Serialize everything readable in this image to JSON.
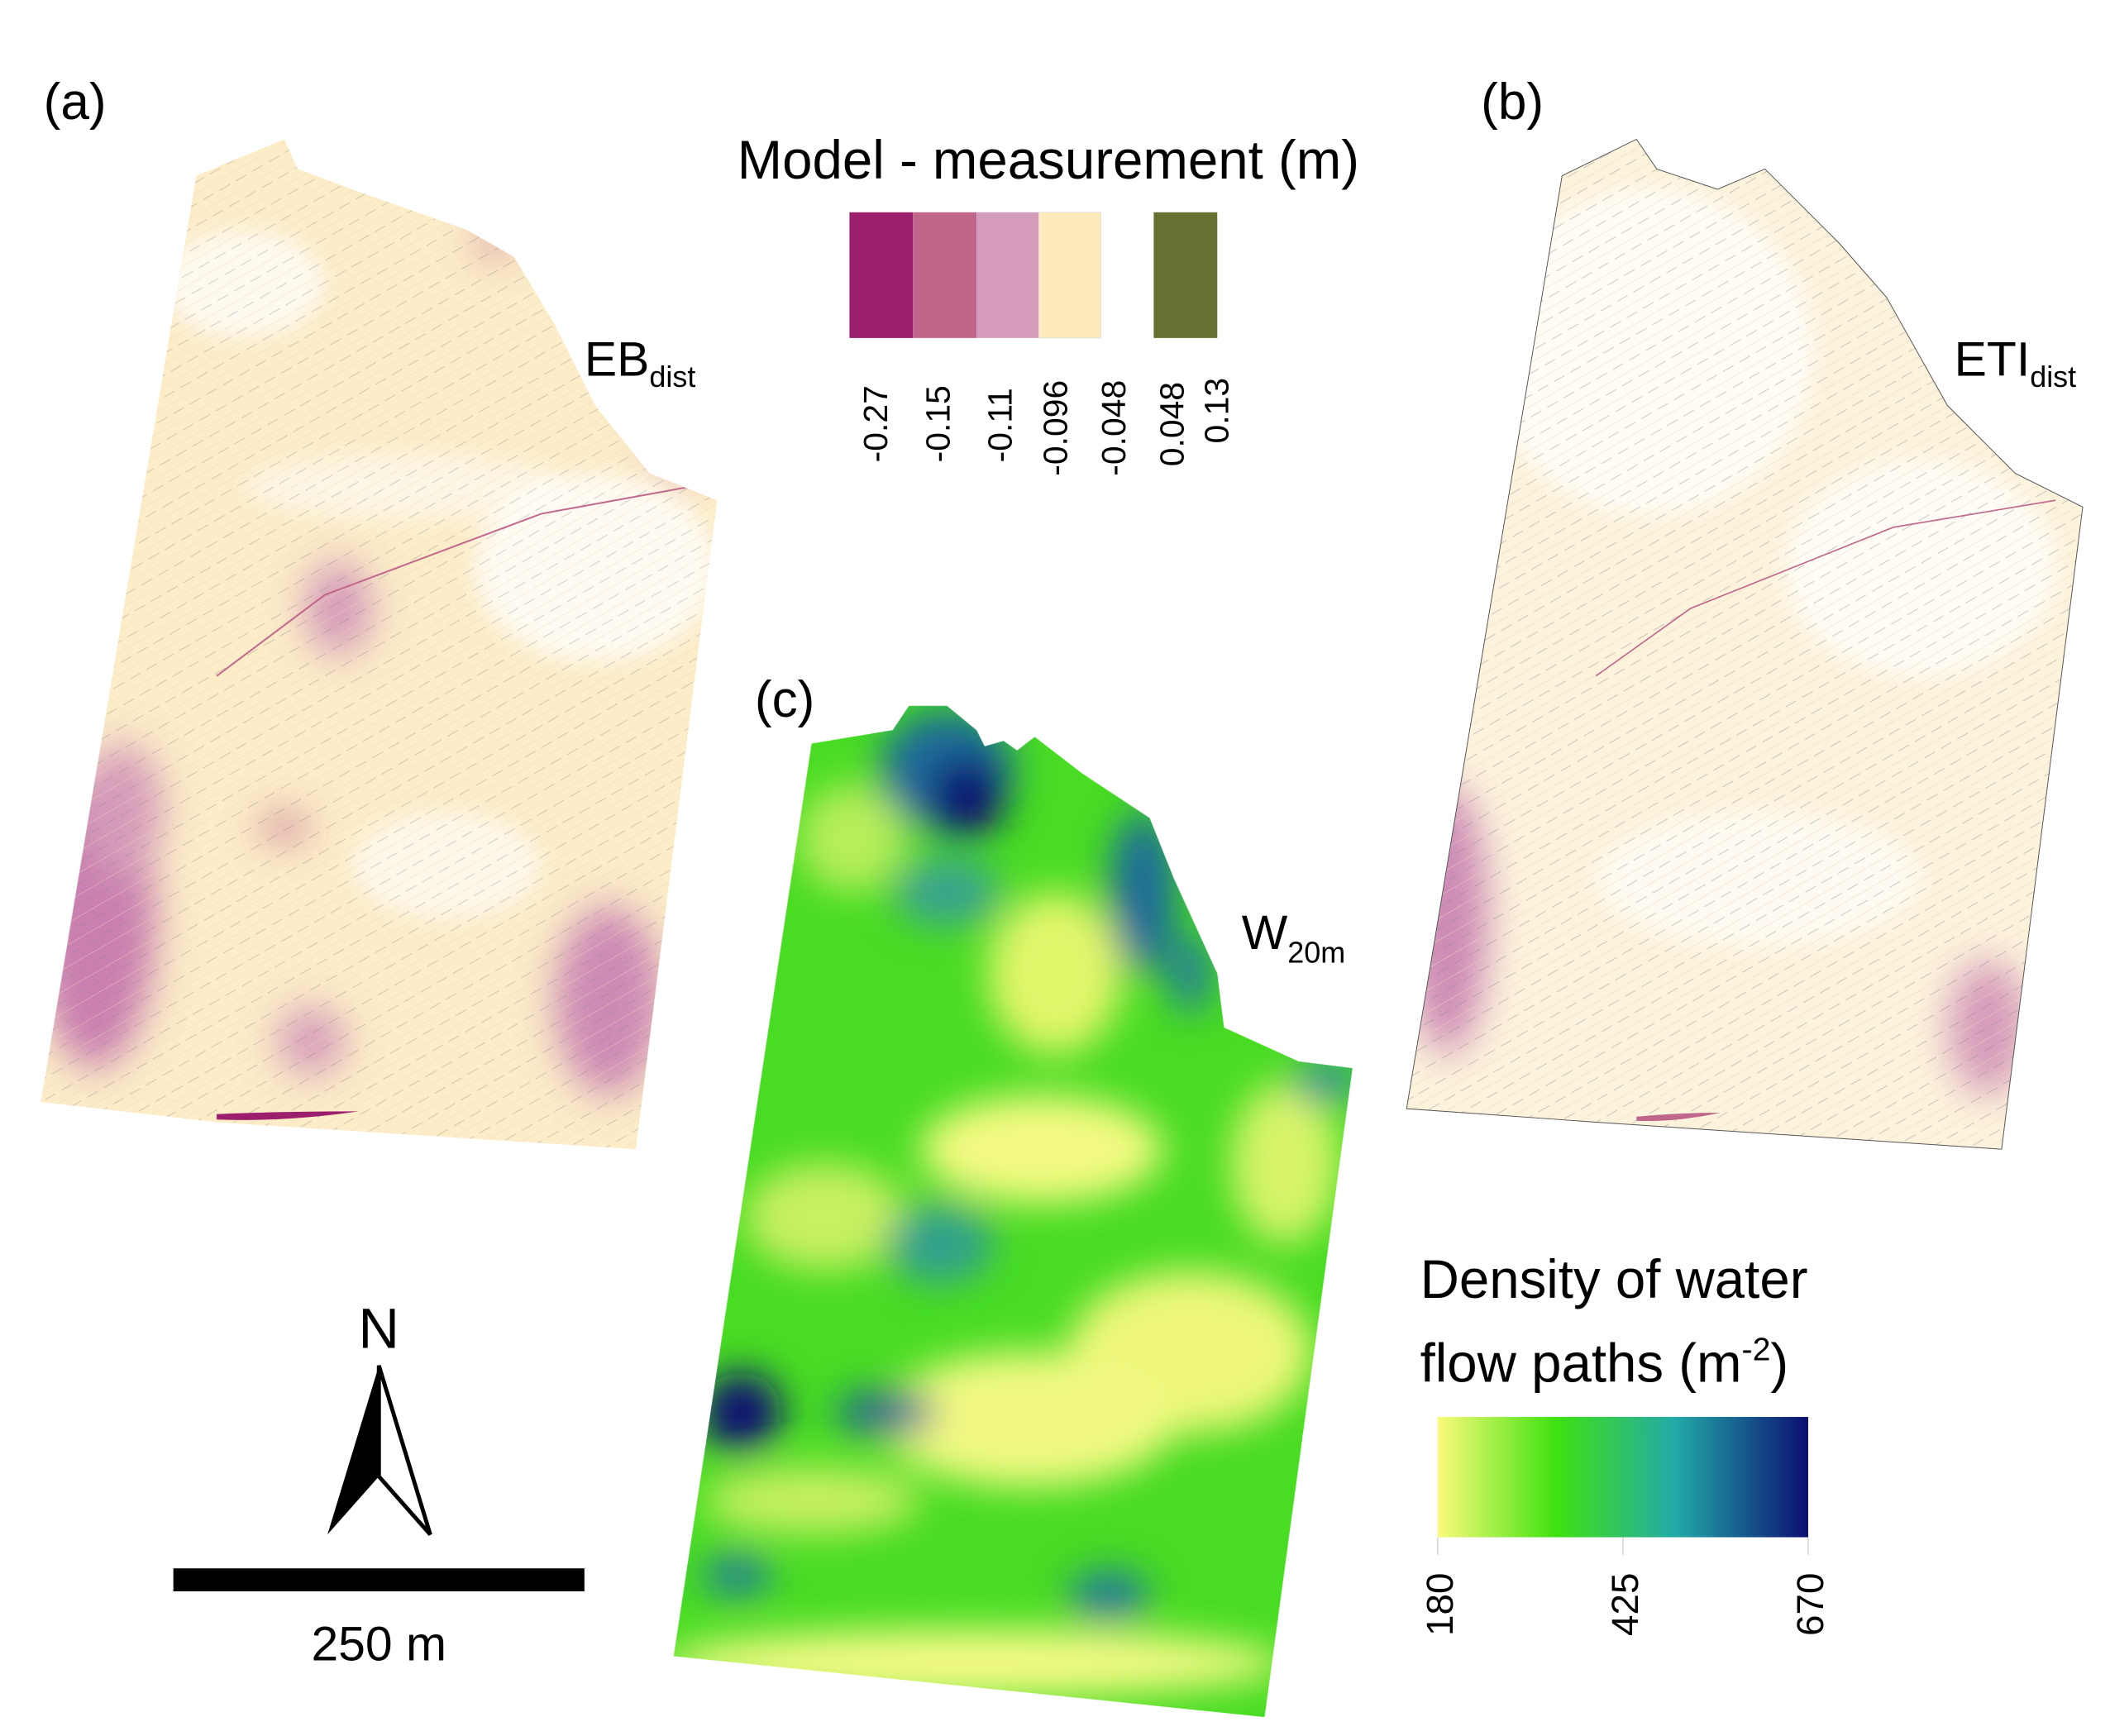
{
  "panels": {
    "a": {
      "label": "(a)",
      "name_main": "EB",
      "name_sub": "dist"
    },
    "b": {
      "label": "(b)",
      "name_main": "ETI",
      "name_sub": "dist"
    },
    "c": {
      "label": "(c)",
      "name_main": "W",
      "name_sub": "20m"
    }
  },
  "difference_legend": {
    "title": "Model - measurement (m)",
    "classes": [
      {
        "label": "-0.27",
        "color": "#9c1f6e"
      },
      {
        "label": "-0.15",
        "color": "#c0668a"
      },
      {
        "label": "-0.11",
        "color": "#d59bba"
      },
      {
        "label": "-0.096",
        "color": "#feeabd"
      },
      {
        "label": "-0.048",
        "color": "#ffffff"
      },
      {
        "label": "0.048",
        "color": "#667030"
      },
      {
        "label": "0.13",
        "color": "#667030"
      }
    ]
  },
  "density_legend": {
    "title_line1": "Density of water",
    "title_line2": "flow paths (m",
    "title_sup": "-2",
    "title_close": ")",
    "ticks": [
      "180",
      "425",
      "670"
    ],
    "range": [
      180,
      670
    ],
    "gradient": [
      "#fbfb7a",
      "#3ee210",
      "#22aaa8",
      "#0c0f72"
    ]
  },
  "north_arrow": {
    "label": "N"
  },
  "scale_bar": {
    "label": "250 m",
    "value_m": 250
  }
}
